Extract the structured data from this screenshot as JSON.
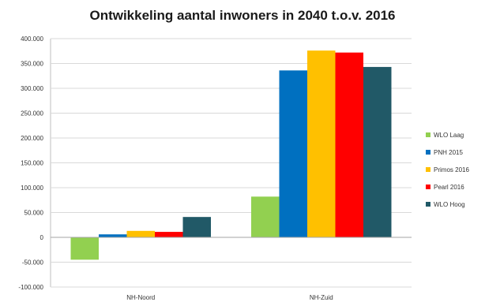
{
  "chart_data": {
    "type": "bar",
    "title": "Ontwikkeling aantal inwoners in 2040 t.o.v. 2016",
    "categories": [
      "NH-Noord",
      "NH-Zuid"
    ],
    "series": [
      {
        "name": "WLO Laag",
        "values": [
          -45000,
          82000
        ],
        "color": "#92d050"
      },
      {
        "name": "PNH 2015",
        "values": [
          6000,
          336000
        ],
        "color": "#0070c0"
      },
      {
        "name": "Primos 2016",
        "values": [
          13000,
          376000
        ],
        "color": "#ffc000"
      },
      {
        "name": "Pearl 2016",
        "values": [
          11000,
          372000
        ],
        "color": "#ff0000"
      },
      {
        "name": "WLO Hoog",
        "values": [
          41000,
          343000
        ],
        "color": "#215967"
      }
    ],
    "ylim": [
      -100000,
      400000
    ],
    "yticks": [
      "400.000",
      "350.000",
      "300.000",
      "250.000",
      "200.000",
      "150.000",
      "100.000",
      "50.000",
      "0",
      "-50.000",
      "-100.000"
    ],
    "grid": true,
    "legend": "right"
  }
}
